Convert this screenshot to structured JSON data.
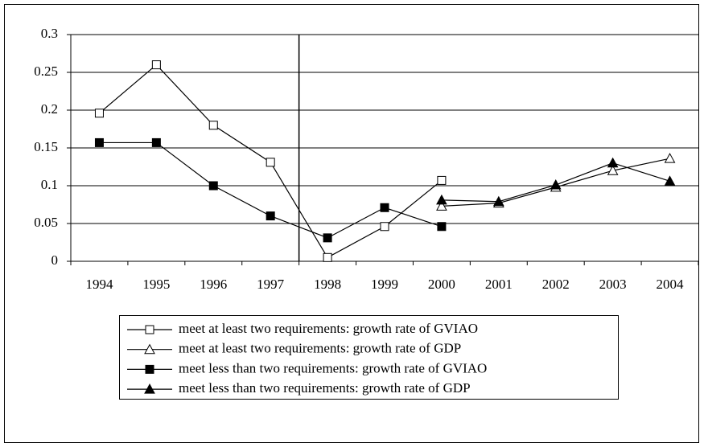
{
  "chart_data": {
    "type": "line",
    "categories": [
      "1994",
      "1995",
      "1996",
      "1997",
      "1998",
      "1999",
      "2000",
      "2001",
      "2002",
      "2003",
      "2004"
    ],
    "series": [
      {
        "name": "meet at least two requirements: growth rate of GVIAO",
        "color": "#000000",
        "marker": "square",
        "filled": false,
        "values": [
          0.196,
          0.26,
          0.18,
          0.131,
          0.005,
          0.046,
          0.107,
          null,
          null,
          null,
          null
        ]
      },
      {
        "name": "meet at least two requirements: growth rate of GDP",
        "color": "#000000",
        "marker": "triangle",
        "filled": false,
        "values": [
          null,
          null,
          null,
          null,
          null,
          null,
          0.073,
          0.077,
          0.098,
          0.12,
          0.136
        ]
      },
      {
        "name": "meet less than two requirements: growth rate of GVIAO",
        "color": "#000000",
        "marker": "square",
        "filled": true,
        "values": [
          0.157,
          0.157,
          0.1,
          0.06,
          0.031,
          0.071,
          0.046,
          null,
          null,
          null,
          null
        ]
      },
      {
        "name": "meet less than two requirements: growth rate of GDP",
        "color": "#000000",
        "marker": "triangle",
        "filled": true,
        "values": [
          null,
          null,
          null,
          null,
          null,
          null,
          0.081,
          0.079,
          0.101,
          0.13,
          0.106
        ]
      }
    ],
    "ylim": [
      0,
      0.3
    ],
    "yticks": [
      0,
      0.05,
      0.1,
      0.15,
      0.2,
      0.25,
      0.3
    ],
    "grid": true,
    "legend": "bottom"
  }
}
